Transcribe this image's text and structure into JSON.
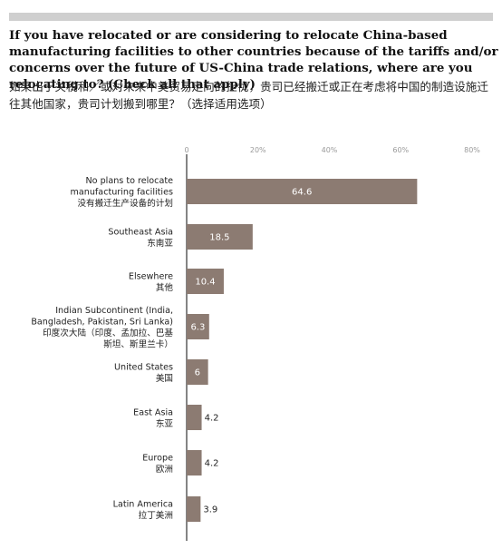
{
  "header": {
    "question_en": "If you have relocated or are considering to relocate China-based manufacturing facilities to other countries because of the tariffs and/or concerns over the future of US-China trade relations, where are you relocating to? (Check all that apply)",
    "question_zh": "如果出于关税和／或对未来中美贸易走向的担忧，贵司已经搬迁或正在考虑将中国的制造设施迁往其他国家，贵司计划搬到哪里？（选择适用选项）"
  },
  "chart_data": {
    "type": "bar",
    "orientation": "horizontal",
    "title": "",
    "xlabel": "",
    "ylabel": "",
    "xlim": [
      0,
      80
    ],
    "x_ticks": [
      "0",
      "20%",
      "40%",
      "60%",
      "80%"
    ],
    "grid": false,
    "legend": "none",
    "bar_color": "#8c7b72",
    "categories": [
      {
        "lines": [
          "No plans to relocate",
          "manufacturing facilities",
          "没有搬迁生产设备的计划"
        ],
        "value": 64.6,
        "label": "64.6"
      },
      {
        "lines": [
          "Southeast Asia",
          "东南亚"
        ],
        "value": 18.5,
        "label": "18.5"
      },
      {
        "lines": [
          "Elsewhere",
          "其他"
        ],
        "value": 10.4,
        "label": "10.4"
      },
      {
        "lines": [
          "Indian Subcontinent (India,",
          "Bangladesh, Pakistan, Sri Lanka)",
          "印度次大陆（印度、孟加拉、巴基",
          "斯坦、斯里兰卡）"
        ],
        "value": 6.3,
        "label": "6.3"
      },
      {
        "lines": [
          "United States",
          "美国"
        ],
        "value": 6,
        "label": "6"
      },
      {
        "lines": [
          "East Asia",
          "东亚"
        ],
        "value": 4.2,
        "label": "4.2"
      },
      {
        "lines": [
          "Europe",
          "欧洲"
        ],
        "value": 4.2,
        "label": "4.2"
      },
      {
        "lines": [
          "Latin America",
          "拉丁美洲"
        ],
        "value": 3.9,
        "label": "3.9"
      }
    ]
  }
}
